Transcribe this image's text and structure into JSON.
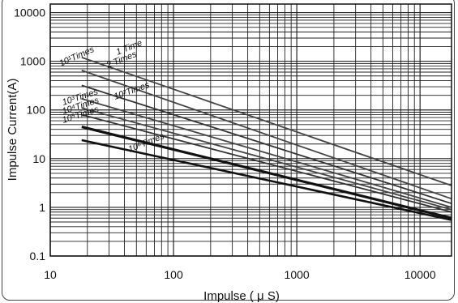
{
  "chart_data": {
    "type": "line",
    "xlabel": "Impulse ( μ S)",
    "ylabel": "Impulse Current(A)",
    "xscale": "log",
    "yscale": "log",
    "xlim": [
      10,
      18000
    ],
    "ylim": [
      0.1,
      15000
    ],
    "x_ticks": [
      10,
      100,
      1000,
      10000
    ],
    "x_tick_labels": [
      "10",
      "100",
      "1000",
      "10000"
    ],
    "y_ticks": [
      0.1,
      1,
      10,
      100,
      1000,
      10000
    ],
    "y_tick_labels": [
      "0.1",
      "1",
      "10",
      "100",
      "1000",
      "10000"
    ],
    "grid": true,
    "legend": "none",
    "series": [
      {
        "name": "1 Time",
        "x": [
          18,
          18000
        ],
        "y": [
          1200,
          2.8
        ]
      },
      {
        "name": "2 Times",
        "x": [
          18,
          18000
        ],
        "y": [
          650,
          1.5
        ]
      },
      {
        "name": "10¹Times",
        "x": [
          18,
          18000
        ],
        "y": [
          320,
          1.2
        ]
      },
      {
        "name": "10²Times",
        "x": [
          18,
          18000
        ],
        "y": [
          170,
          1.0
        ]
      },
      {
        "name": "10³Times",
        "x": [
          18,
          18000
        ],
        "y": [
          110,
          0.9
        ]
      },
      {
        "name": "10⁴Times",
        "x": [
          18,
          18000
        ],
        "y": [
          80,
          0.8
        ]
      },
      {
        "name": "10⁵Times",
        "x": [
          18,
          18000
        ],
        "y": [
          45,
          0.6
        ]
      },
      {
        "name": "10⁶Times",
        "x": [
          18,
          18000
        ],
        "y": [
          24,
          0.55
        ]
      }
    ]
  }
}
